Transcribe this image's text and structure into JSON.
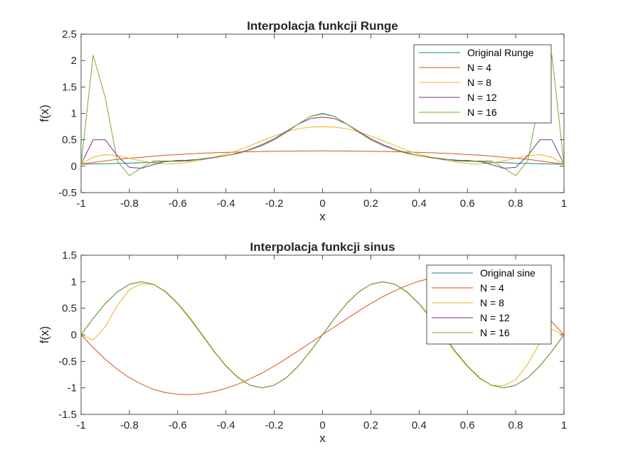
{
  "chart_data": [
    {
      "type": "line",
      "title": "Interpolacja funkcji Runge",
      "xlabel": "x",
      "ylabel": "f(x)",
      "xlim": [
        -1,
        1
      ],
      "ylim": [
        -0.5,
        2.5
      ],
      "xticks": [
        -1,
        -0.8,
        -0.6,
        -0.4,
        -0.2,
        0,
        0.2,
        0.4,
        0.6,
        0.8,
        1
      ],
      "xtick_labels": [
        "-1",
        "-0.8",
        "-0.6",
        "-0.4",
        "-0.2",
        "0",
        "0.2",
        "0.4",
        "0.6",
        "0.8",
        "1"
      ],
      "yticks": [
        -0.5,
        0,
        0.5,
        1,
        1.5,
        2,
        2.5
      ],
      "ytick_labels": [
        "-0.5",
        "0",
        "0.5",
        "1",
        "1.5",
        "2",
        "2.5"
      ],
      "legend_position": "top-right",
      "grid": false,
      "x": [
        -1,
        -0.95,
        -0.9,
        -0.85,
        -0.8,
        -0.75,
        -0.7,
        -0.65,
        -0.6,
        -0.55,
        -0.5,
        -0.45,
        -0.4,
        -0.35,
        -0.3,
        -0.25,
        -0.2,
        -0.15,
        -0.1,
        -0.05,
        0,
        0.05,
        0.1,
        0.15,
        0.2,
        0.25,
        0.3,
        0.35,
        0.4,
        0.45,
        0.5,
        0.55,
        0.6,
        0.65,
        0.7,
        0.75,
        0.8,
        0.85,
        0.9,
        0.95,
        1
      ],
      "series": [
        {
          "name": "Original Runge",
          "color": "#0f8a8a",
          "values": [
            0.038,
            0.042,
            0.047,
            0.052,
            0.059,
            0.066,
            0.075,
            0.086,
            0.1,
            0.117,
            0.138,
            0.165,
            0.2,
            0.246,
            0.308,
            0.39,
            0.5,
            0.64,
            0.8,
            0.941,
            1.0,
            0.941,
            0.8,
            0.64,
            0.5,
            0.39,
            0.308,
            0.246,
            0.2,
            0.165,
            0.138,
            0.117,
            0.1,
            0.086,
            0.075,
            0.066,
            0.059,
            0.052,
            0.047,
            0.042,
            0.038
          ]
        },
        {
          "name": "N = 4",
          "color": "#d95319",
          "values": [
            0.04,
            0.07,
            0.1,
            0.13,
            0.15,
            0.17,
            0.19,
            0.21,
            0.22,
            0.235,
            0.245,
            0.255,
            0.262,
            0.268,
            0.274,
            0.278,
            0.282,
            0.285,
            0.287,
            0.289,
            0.29,
            0.289,
            0.287,
            0.285,
            0.282,
            0.278,
            0.274,
            0.268,
            0.262,
            0.255,
            0.245,
            0.235,
            0.22,
            0.21,
            0.19,
            0.17,
            0.15,
            0.13,
            0.1,
            0.07,
            0.04
          ]
        },
        {
          "name": "N = 8",
          "color": "#edb120",
          "values": [
            0.04,
            0.17,
            0.22,
            0.2,
            0.15,
            0.1,
            0.06,
            0.04,
            0.05,
            0.08,
            0.12,
            0.17,
            0.23,
            0.3,
            0.39,
            0.48,
            0.57,
            0.65,
            0.71,
            0.74,
            0.75,
            0.74,
            0.71,
            0.65,
            0.57,
            0.48,
            0.39,
            0.3,
            0.23,
            0.17,
            0.12,
            0.08,
            0.05,
            0.04,
            0.06,
            0.1,
            0.15,
            0.2,
            0.22,
            0.17,
            0.04
          ]
        },
        {
          "name": "N = 12",
          "color": "#7e2f8e",
          "values": [
            0.04,
            0.5,
            0.5,
            0.2,
            -0.02,
            -0.04,
            0.03,
            0.09,
            0.11,
            0.11,
            0.13,
            0.16,
            0.2,
            0.25,
            0.32,
            0.41,
            0.52,
            0.66,
            0.8,
            0.9,
            0.93,
            0.9,
            0.8,
            0.66,
            0.52,
            0.41,
            0.32,
            0.25,
            0.2,
            0.16,
            0.13,
            0.11,
            0.11,
            0.09,
            0.03,
            -0.04,
            -0.02,
            0.2,
            0.5,
            0.5,
            0.04
          ]
        },
        {
          "name": "N = 16",
          "color": "#77ac30",
          "values": [
            0.04,
            2.1,
            1.3,
            0.1,
            -0.18,
            -0.03,
            0.1,
            0.1,
            0.09,
            0.1,
            0.14,
            0.17,
            0.2,
            0.24,
            0.31,
            0.39,
            0.5,
            0.64,
            0.8,
            0.94,
            0.99,
            0.94,
            0.8,
            0.64,
            0.5,
            0.39,
            0.31,
            0.24,
            0.2,
            0.17,
            0.14,
            0.1,
            0.09,
            0.1,
            0.1,
            -0.03,
            -0.18,
            0.1,
            1.3,
            2.1,
            0.04
          ]
        }
      ]
    },
    {
      "type": "line",
      "title": "Interpolacja funkcji sinus",
      "xlabel": "x",
      "ylabel": "f(x)",
      "xlim": [
        -1,
        1
      ],
      "ylim": [
        -1.5,
        1.5
      ],
      "xticks": [
        -1,
        -0.8,
        -0.6,
        -0.4,
        -0.2,
        0,
        0.2,
        0.4,
        0.6,
        0.8,
        1
      ],
      "xtick_labels": [
        "-1",
        "-0.8",
        "-0.6",
        "-0.4",
        "-0.2",
        "0",
        "0.2",
        "0.4",
        "0.6",
        "0.8",
        "1"
      ],
      "yticks": [
        -1.5,
        -1,
        -0.5,
        0,
        0.5,
        1,
        1.5
      ],
      "ytick_labels": [
        "-1.5",
        "-1",
        "-0.5",
        "0",
        "0.5",
        "1",
        "1.5"
      ],
      "legend_position": "top-right",
      "grid": false,
      "x": [
        -1,
        -0.95,
        -0.9,
        -0.85,
        -0.8,
        -0.75,
        -0.7,
        -0.65,
        -0.6,
        -0.55,
        -0.5,
        -0.45,
        -0.4,
        -0.35,
        -0.3,
        -0.25,
        -0.2,
        -0.15,
        -0.1,
        -0.05,
        0,
        0.05,
        0.1,
        0.15,
        0.2,
        0.25,
        0.3,
        0.35,
        0.4,
        0.45,
        0.5,
        0.55,
        0.6,
        0.65,
        0.7,
        0.75,
        0.8,
        0.85,
        0.9,
        0.95,
        1
      ],
      "series": [
        {
          "name": "Original sine",
          "color": "#0f8a8a",
          "values": [
            0,
            0.309,
            0.588,
            0.809,
            0.951,
            1.0,
            0.951,
            0.809,
            0.588,
            0.309,
            0,
            -0.309,
            -0.588,
            -0.809,
            -0.951,
            -1.0,
            -0.951,
            -0.809,
            -0.588,
            -0.309,
            0,
            0.309,
            0.588,
            0.809,
            0.951,
            1.0,
            0.951,
            0.809,
            0.588,
            0.309,
            0,
            -0.309,
            -0.588,
            -0.809,
            -0.951,
            -1.0,
            -0.951,
            -0.809,
            -0.588,
            -0.309,
            0
          ]
        },
        {
          "name": "N = 4",
          "color": "#d95319",
          "values": [
            0,
            -0.24,
            -0.46,
            -0.65,
            -0.81,
            -0.93,
            -1.03,
            -1.09,
            -1.12,
            -1.13,
            -1.11,
            -1.07,
            -1.01,
            -0.93,
            -0.83,
            -0.72,
            -0.59,
            -0.45,
            -0.3,
            -0.15,
            0,
            0.15,
            0.3,
            0.45,
            0.59,
            0.72,
            0.83,
            0.93,
            1.01,
            1.07,
            1.11,
            1.13,
            1.12,
            1.09,
            1.03,
            0.93,
            0.81,
            0.65,
            0.46,
            0.24,
            0
          ]
        },
        {
          "name": "N = 8",
          "color": "#edb120",
          "values": [
            0,
            -0.1,
            0.15,
            0.55,
            0.85,
            0.96,
            0.95,
            0.82,
            0.6,
            0.33,
            0.02,
            -0.3,
            -0.58,
            -0.8,
            -0.95,
            -1.0,
            -0.95,
            -0.81,
            -0.59,
            -0.31,
            0,
            0.31,
            0.59,
            0.81,
            0.95,
            1.0,
            0.95,
            0.8,
            0.58,
            0.3,
            -0.02,
            -0.33,
            -0.6,
            -0.82,
            -0.95,
            -0.96,
            -0.85,
            -0.55,
            -0.15,
            0.1,
            0
          ]
        },
        {
          "name": "N = 12",
          "color": "#7e2f8e",
          "values": [
            0,
            0.309,
            0.588,
            0.809,
            0.951,
            1.0,
            0.951,
            0.809,
            0.588,
            0.309,
            0,
            -0.309,
            -0.588,
            -0.809,
            -0.951,
            -1.0,
            -0.951,
            -0.809,
            -0.588,
            -0.309,
            0,
            0.309,
            0.588,
            0.809,
            0.951,
            1.0,
            0.951,
            0.809,
            0.588,
            0.309,
            0,
            -0.309,
            -0.588,
            -0.809,
            -0.951,
            -1.0,
            -0.951,
            -0.809,
            -0.588,
            -0.309,
            0
          ]
        },
        {
          "name": "N = 16",
          "color": "#77ac30",
          "values": [
            0,
            0.309,
            0.588,
            0.809,
            0.951,
            1.0,
            0.951,
            0.809,
            0.588,
            0.309,
            0,
            -0.309,
            -0.588,
            -0.809,
            -0.951,
            -1.0,
            -0.951,
            -0.809,
            -0.588,
            -0.309,
            0,
            0.309,
            0.588,
            0.809,
            0.951,
            1.0,
            0.951,
            0.809,
            0.588,
            0.309,
            0,
            -0.309,
            -0.588,
            -0.809,
            -0.951,
            -1.0,
            -0.951,
            -0.809,
            -0.588,
            -0.309,
            0
          ]
        }
      ]
    }
  ]
}
